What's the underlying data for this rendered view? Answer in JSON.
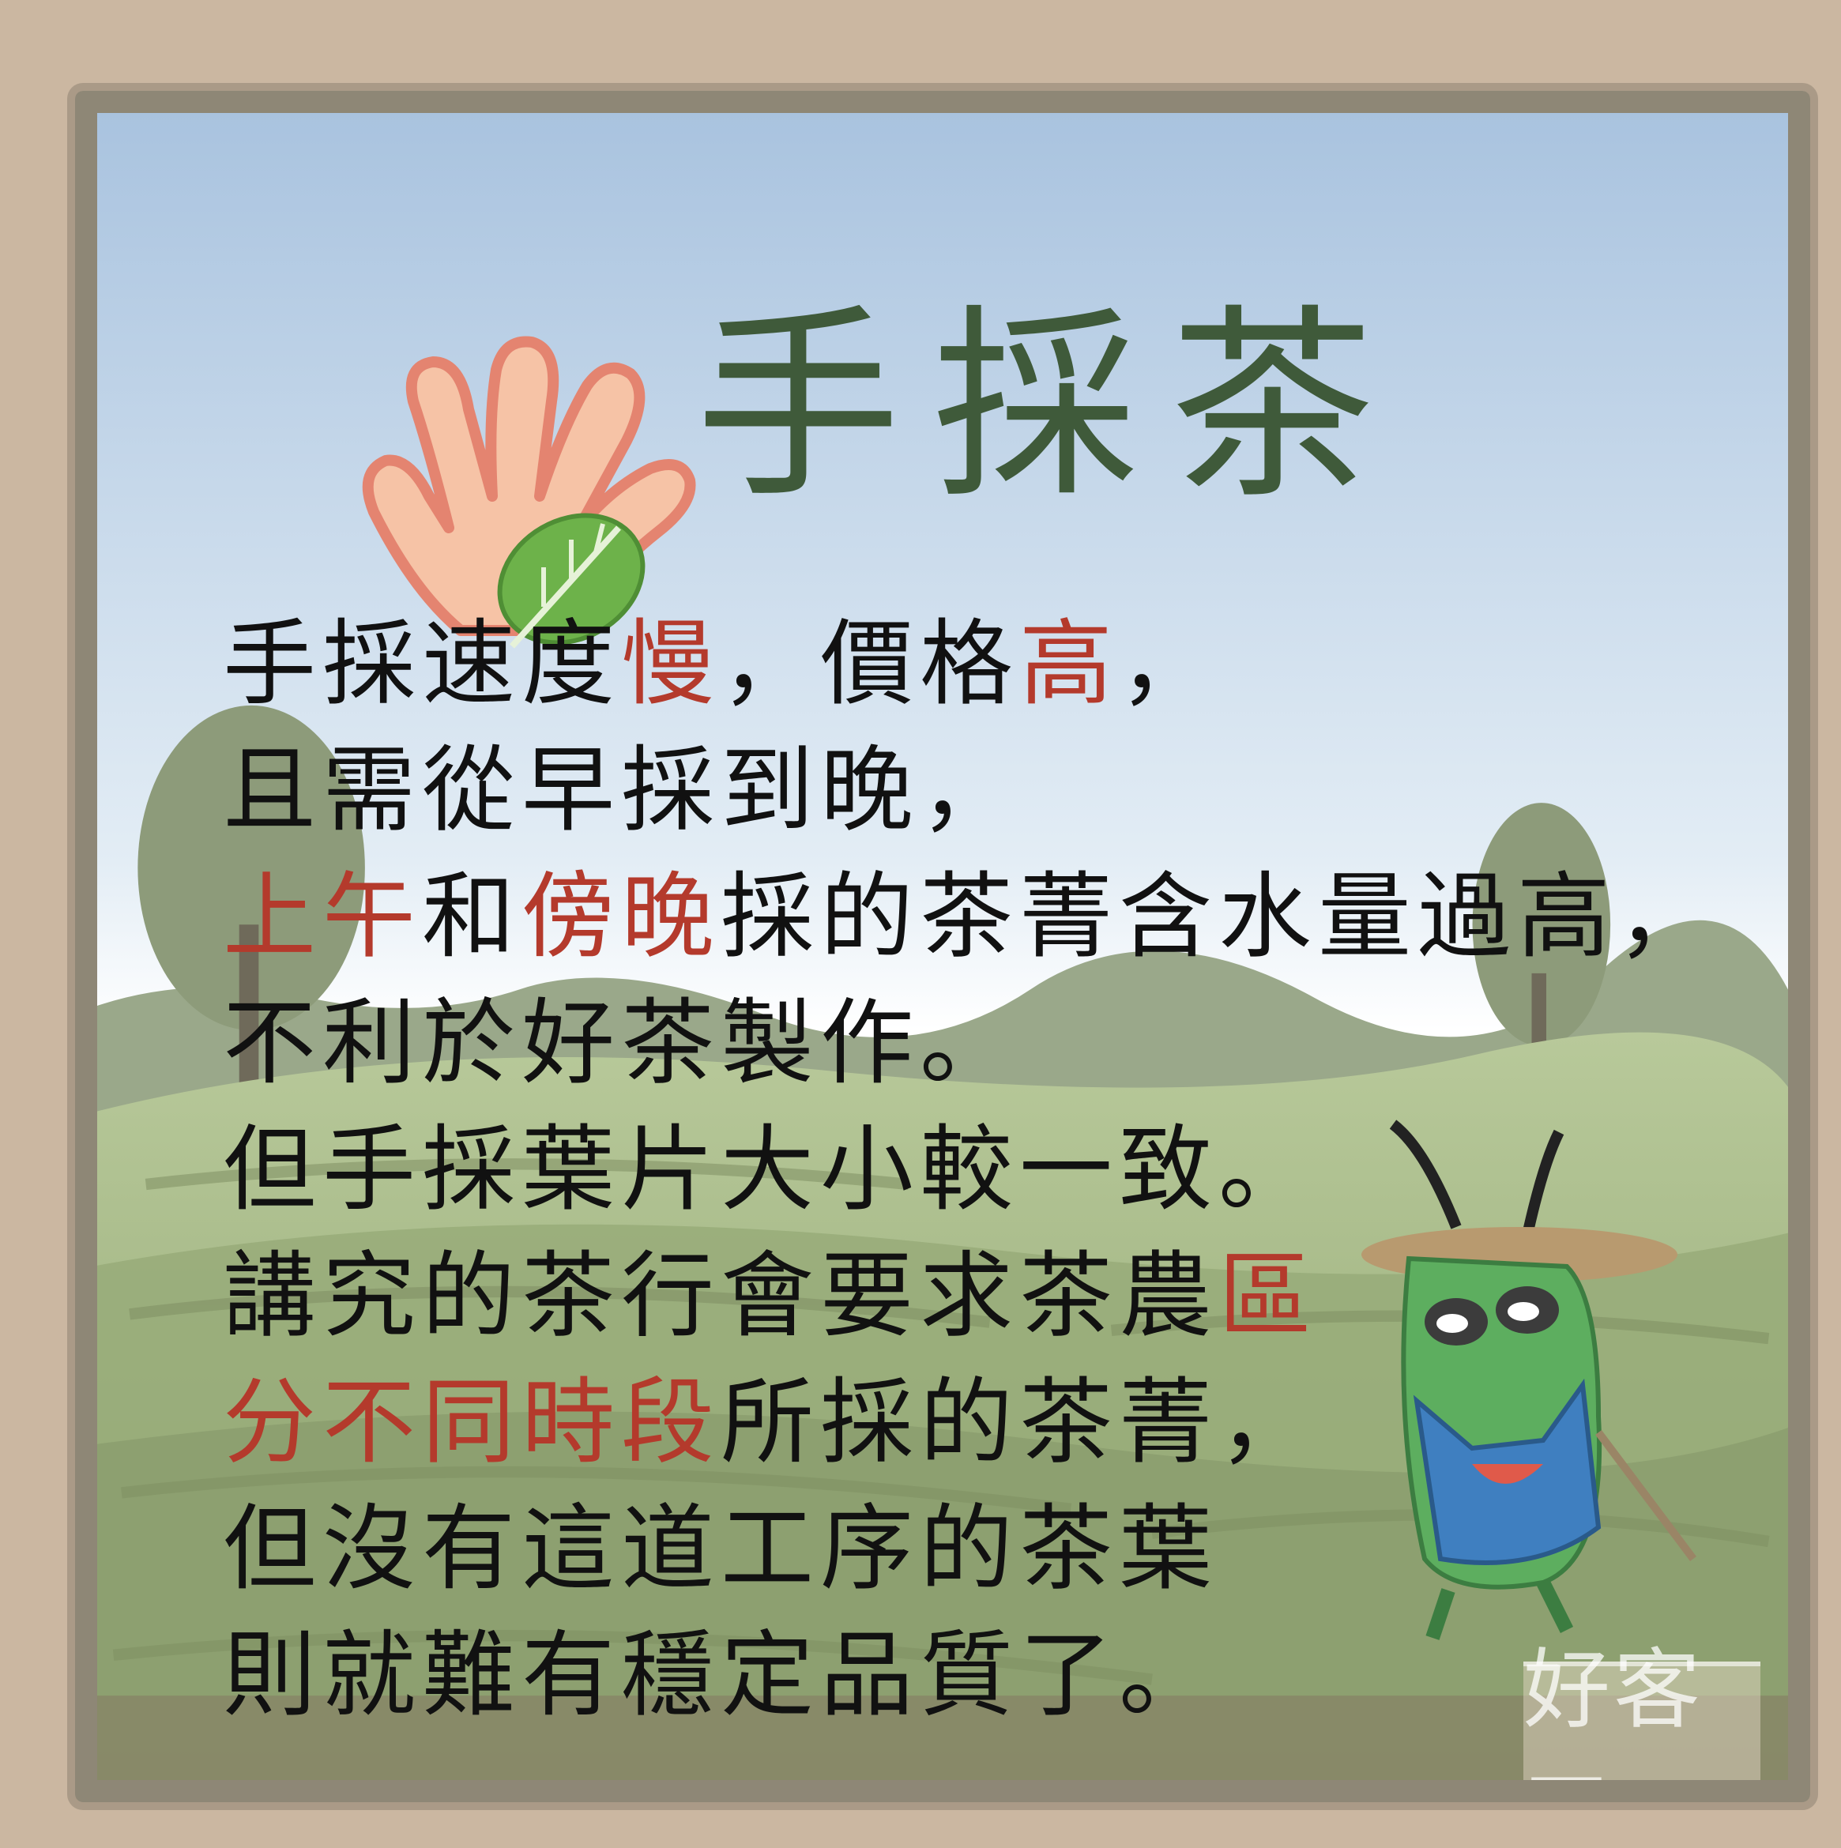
{
  "title": "手採茶",
  "body_lines": [
    [
      {
        "t": "手採速度"
      },
      {
        "t": "慢",
        "c": "red"
      },
      {
        "t": "，價格"
      },
      {
        "t": "高",
        "c": "red"
      },
      {
        "t": "，"
      }
    ],
    [
      {
        "t": "且需從早採到晚，"
      }
    ],
    [
      {
        "t": "上午",
        "c": "red"
      },
      {
        "t": "和"
      },
      {
        "t": "傍晚",
        "c": "red"
      },
      {
        "t": "採的茶菁含水量過高，"
      }
    ],
    [
      {
        "t": "不利於好茶製作。"
      }
    ],
    [
      {
        "t": "但手採葉片大小較一致。"
      }
    ],
    [
      {
        "t": "講究的茶行會要求茶農"
      },
      {
        "t": "區",
        "c": "red"
      }
    ],
    [
      {
        "t": "分不同時段",
        "c": "red"
      },
      {
        "t": "所採的茶菁，"
      }
    ],
    [
      {
        "t": "但沒有這道工序的茶葉"
      }
    ],
    [
      {
        "t": "則就難有穩定品質了。"
      }
    ]
  ],
  "watermark": "好客區",
  "colors": {
    "highlight": "#b43a2c",
    "title": "#3f5a3a",
    "text": "#111111",
    "frame": "#8e8776",
    "background": "#cbb7a1"
  },
  "icons": [
    "hand-with-leaf-icon",
    "grasshopper-farmer-mascot"
  ]
}
